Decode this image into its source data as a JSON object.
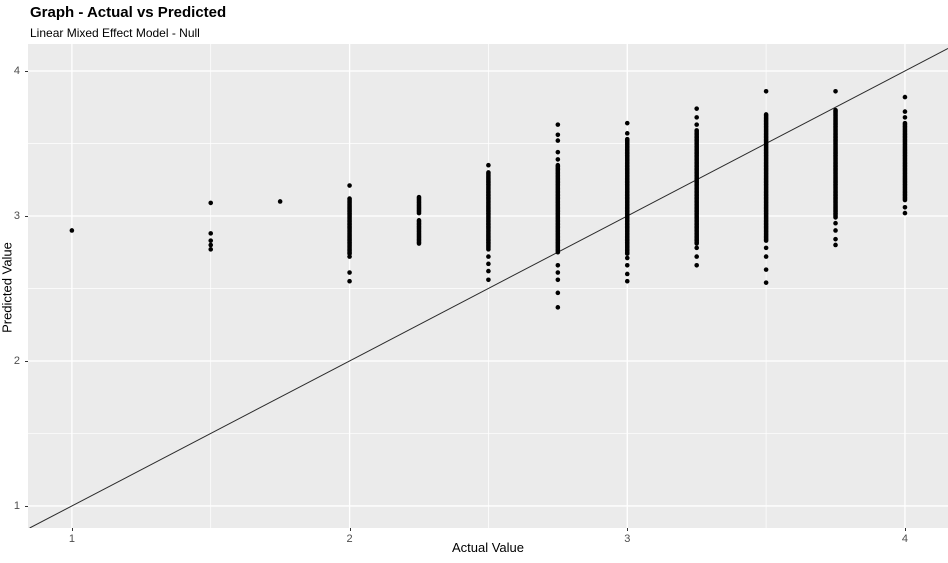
{
  "chart_data": {
    "type": "scatter",
    "title": "Graph - Actual vs Predicted",
    "subtitle": "Linear Mixed Effect Model - Null",
    "xlabel": "Actual Value",
    "ylabel": "Predicted Value",
    "x_ticks": [
      1,
      2,
      3,
      4
    ],
    "y_ticks": [
      1,
      2,
      3,
      4
    ],
    "x_minor_ticks": [
      1.5,
      2.5,
      3.5
    ],
    "y_minor_ticks": [
      1.5,
      2.5,
      3.5
    ],
    "x_range": [
      0.842,
      4.155
    ],
    "y_range": [
      0.848,
      4.186
    ],
    "grid": "on",
    "legend": "none",
    "identity_line": true,
    "point_color": "#000000",
    "point_radius": 2.3,
    "line_color": "#2B2B2B",
    "panel_bg": "#EBEBEB",
    "grid_color": "#FFFFFF",
    "tick_label_color": "#4D4D4D",
    "columns": [
      {
        "x": 1.0,
        "points": [
          2.9
        ],
        "dense": []
      },
      {
        "x": 1.5,
        "points": [
          3.09,
          2.88,
          2.83,
          2.8,
          2.77
        ],
        "dense": []
      },
      {
        "x": 1.75,
        "points": [
          3.1
        ],
        "dense": []
      },
      {
        "x": 2.0,
        "points": [
          3.21,
          2.72,
          2.61,
          2.55
        ],
        "dense": [
          [
            2.74,
            3.12
          ]
        ]
      },
      {
        "x": 2.25,
        "points": [],
        "dense": [
          [
            2.81,
            2.97
          ],
          [
            3.02,
            3.13
          ]
        ]
      },
      {
        "x": 2.5,
        "points": [
          3.35,
          2.72,
          2.67,
          2.62,
          2.56
        ],
        "dense": [
          [
            2.77,
            3.3
          ]
        ]
      },
      {
        "x": 2.75,
        "points": [
          3.63,
          3.56,
          3.52,
          3.44,
          3.39,
          2.66,
          2.61,
          2.56,
          2.47,
          2.37
        ],
        "dense": [
          [
            2.75,
            3.35
          ]
        ]
      },
      {
        "x": 3.0,
        "points": [
          3.64,
          3.57,
          2.71,
          2.66,
          2.6,
          2.55
        ],
        "dense": [
          [
            2.74,
            3.53
          ]
        ]
      },
      {
        "x": 3.25,
        "points": [
          3.74,
          3.68,
          3.63,
          2.78,
          2.72,
          2.66
        ],
        "dense": [
          [
            2.81,
            3.59
          ]
        ]
      },
      {
        "x": 3.5,
        "points": [
          3.86,
          2.78,
          2.72,
          2.63,
          2.54
        ],
        "dense": [
          [
            2.83,
            3.7
          ]
        ]
      },
      {
        "x": 3.75,
        "points": [
          3.86,
          2.95,
          2.9,
          2.84,
          2.8
        ],
        "dense": [
          [
            2.99,
            3.73
          ]
        ]
      },
      {
        "x": 4.0,
        "points": [
          3.82,
          3.72,
          3.68,
          3.06,
          3.02
        ],
        "dense": [
          [
            3.11,
            3.64
          ]
        ]
      }
    ]
  }
}
